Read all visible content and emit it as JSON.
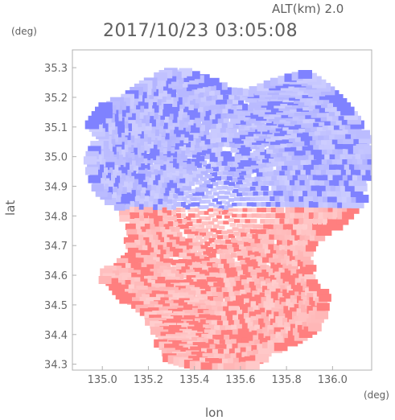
{
  "header": {
    "altitude_text": "ALT(km)  2.0",
    "title": "2017/10/23 03:05:08"
  },
  "chart_data": {
    "type": "heatmap",
    "title": "2017/10/23 03:05:08",
    "subtitle": "ALT(km)  2.0",
    "xlabel": "lon",
    "ylabel": "lat",
    "x_unit": "(deg)",
    "y_unit": "(deg)",
    "xlim": [
      134.87,
      136.17
    ],
    "ylim": [
      34.28,
      35.36
    ],
    "xticks": [
      135.0,
      135.2,
      135.4,
      135.6,
      135.8,
      136.0
    ],
    "xtick_labels": [
      "135.0",
      "135.2",
      "135.4",
      "135.6",
      "135.8",
      "136.0"
    ],
    "yticks": [
      34.3,
      34.4,
      34.5,
      34.6,
      34.7,
      34.8,
      34.9,
      35.0,
      35.1,
      35.2,
      35.3
    ],
    "ytick_labels": [
      "34.3",
      "34.4",
      "34.5",
      "34.6",
      "34.7",
      "34.8",
      "34.9",
      "35.0",
      "35.1",
      "35.2",
      "35.3"
    ],
    "radar_center": {
      "lon": 135.52,
      "lat": 34.82
    },
    "colors": {
      "toward_strong": "#7f82ff",
      "toward_weak": "#dcdcff",
      "away_weak": "#ffdcdc",
      "away_strong": "#ff7f7f",
      "frame": "#b0b0b0"
    },
    "grid": false,
    "regions": [
      {
        "label": "north-negative",
        "lat_range": [
          34.82,
          35.34
        ],
        "sign": "negative"
      },
      {
        "label": "south-positive",
        "lat_range": [
          34.29,
          34.82
        ],
        "sign": "positive"
      }
    ]
  }
}
